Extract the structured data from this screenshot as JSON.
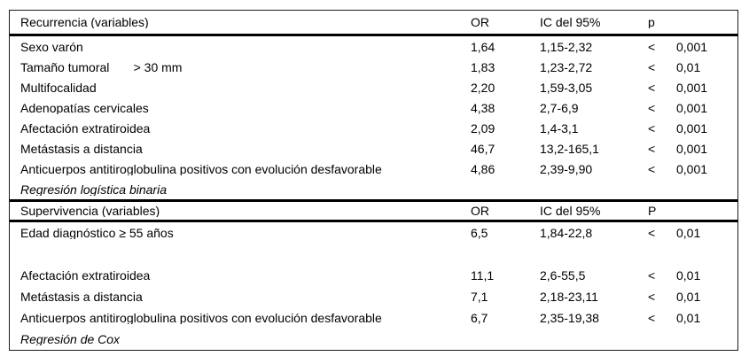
{
  "table": {
    "sections": [
      {
        "header": {
          "label": "Recurrencia (variables)",
          "or": "OR",
          "ic": "IC del 95%",
          "p": "p"
        },
        "rows": [
          {
            "label": "Sexo varón",
            "or": "1,64",
            "ic": "1,15-2,32",
            "lt": "<",
            "p": "0,001"
          },
          {
            "label": "Tamaño tumoral       > 30 mm",
            "or": "1,83",
            "ic": "1,23-2,72",
            "lt": "<",
            "p": "0,01"
          },
          {
            "label": "Multifocalidad",
            "or": "2,20",
            "ic": "1,59-3,05",
            "lt": "<",
            "p": "0,001"
          },
          {
            "label": "Adenopatías cervicales",
            "or": "4,38",
            "ic": "2,7-6,9",
            "lt": "<",
            "p": "0,001"
          },
          {
            "label": "Afectación extratiroidea",
            "or": "2,09",
            "ic": "1,4-3,1",
            "lt": "<",
            "p": "0,001"
          },
          {
            "label": "Metástasis a distancia",
            "or": "46,7",
            "ic": "13,2-165,1",
            "lt": "<",
            "p": "0,001"
          },
          {
            "label": "Anticuerpos antitiroglobulina positivos con evolución desfavorable",
            "or": "4,86",
            "ic": "2,39-9,90",
            "lt": "<",
            "p": "0,001"
          }
        ],
        "footnote": "Regresión logística binaria"
      },
      {
        "header": {
          "label": "Supervivencia (variables)",
          "or": "OR",
          "ic": "IC del 95%",
          "p": "P"
        },
        "rows": [
          {
            "label": "Edad diagnóstico ≥ 55 años",
            "or": "6,5",
            "ic": "1,84-22,8",
            "lt": "<",
            "p": "0,01"
          },
          {
            "label": "",
            "or": "",
            "ic": "",
            "lt": "",
            "p": ""
          },
          {
            "label": "Afectación extratiroidea",
            "or": "11,1",
            "ic": "2,6-55,5",
            "lt": "<",
            "p": "0,01"
          },
          {
            "label": "Metástasis a distancia",
            "or": "7,1",
            "ic": "2,18-23,11",
            "lt": "<",
            "p": "0,01"
          },
          {
            "label": "Anticuerpos antitiroglobulina positivos con evolución desfavorable",
            "or": "6,7",
            "ic": "2,35-19,38",
            "lt": "<",
            "p": "0,01"
          }
        ],
        "footnote": "Regresión de Cox"
      }
    ]
  }
}
